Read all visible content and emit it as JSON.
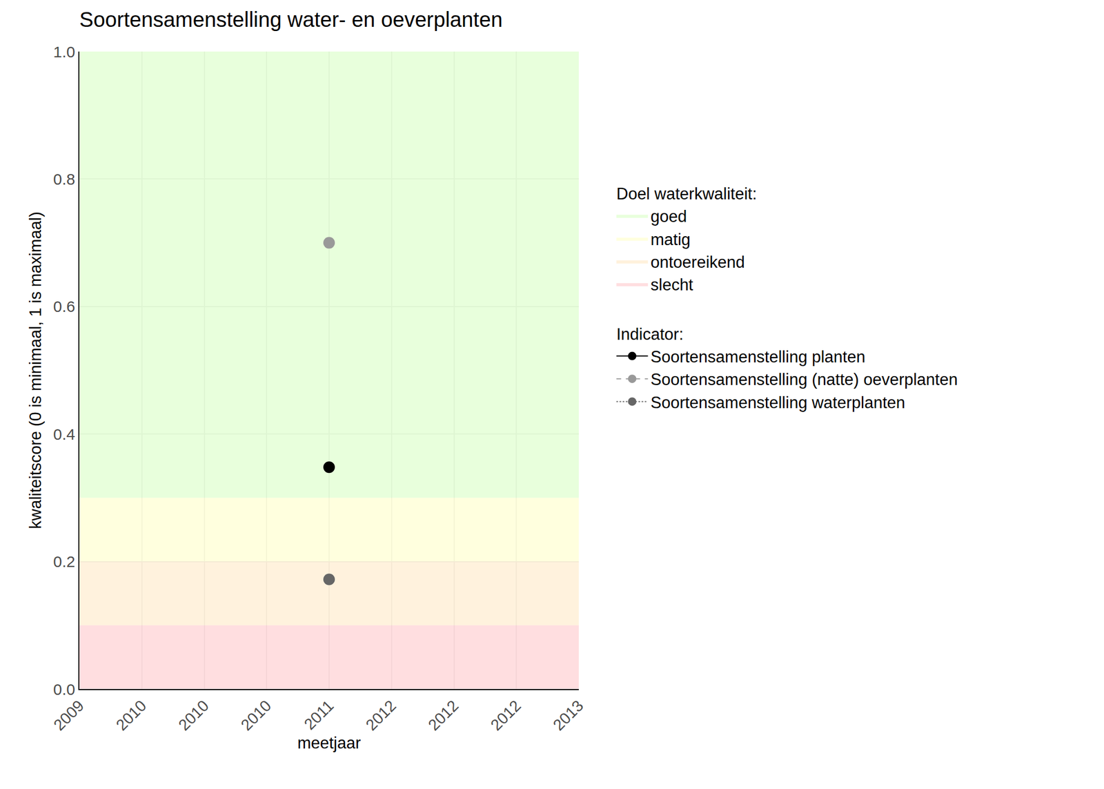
{
  "chart_data": {
    "type": "scatter",
    "title": "Soortensamenstelling water- en oeverplanten",
    "x_label": "meetjaar",
    "y_label": "kwaliteitscore (0 is minimaal, 1 is maximaal)",
    "xlim": [
      2009,
      2013
    ],
    "xticks": [
      2009,
      {
        "value": 2009.5,
        "label": "2010"
      },
      2010,
      {
        "value": 2010.5,
        "label": "2010"
      },
      2011,
      {
        "value": 2011.5,
        "label": "2012"
      },
      2012,
      {
        "value": 2012.5,
        "label": "2012"
      },
      2013
    ],
    "ylim": [
      0,
      1
    ],
    "yticks": [
      {
        "value": 0,
        "label": "0.0"
      },
      0.2,
      0.4,
      0.6,
      0.8,
      {
        "value": 1,
        "label": "1.0"
      }
    ],
    "grid": true,
    "bands_title": "Doel waterkwaliteit:",
    "bands": [
      {
        "name": "goed",
        "color": "#d9ffc4",
        "from": 0.3,
        "to": 1
      },
      {
        "name": "matig",
        "color": "#ffffc8",
        "from": 0.2,
        "to": 0.3
      },
      {
        "name": "ontoereikend",
        "color": "#ffe9c6",
        "from": 0.1,
        "to": 0.2
      },
      {
        "name": "slecht",
        "color": "#ffc8cc",
        "from": 0,
        "to": 0.1
      }
    ],
    "series_title": "Indicator:",
    "series": [
      {
        "name": "Soortensamenstelling planten",
        "color": "#000000",
        "line_style": "solid",
        "marker": "circle",
        "x": [
          2011
        ],
        "values": [
          0.348
        ]
      },
      {
        "name": "Soortensamenstelling (natte) oeverplanten",
        "color": "#999999",
        "line_style": "dash",
        "marker": "circle",
        "x": [
          2011
        ],
        "values": [
          0.7
        ]
      },
      {
        "name": "Soortensamenstelling waterplanten",
        "color": "#666666",
        "line_style": "dot",
        "marker": "circle",
        "x": [
          2011
        ],
        "values": [
          0.172
        ]
      }
    ]
  }
}
